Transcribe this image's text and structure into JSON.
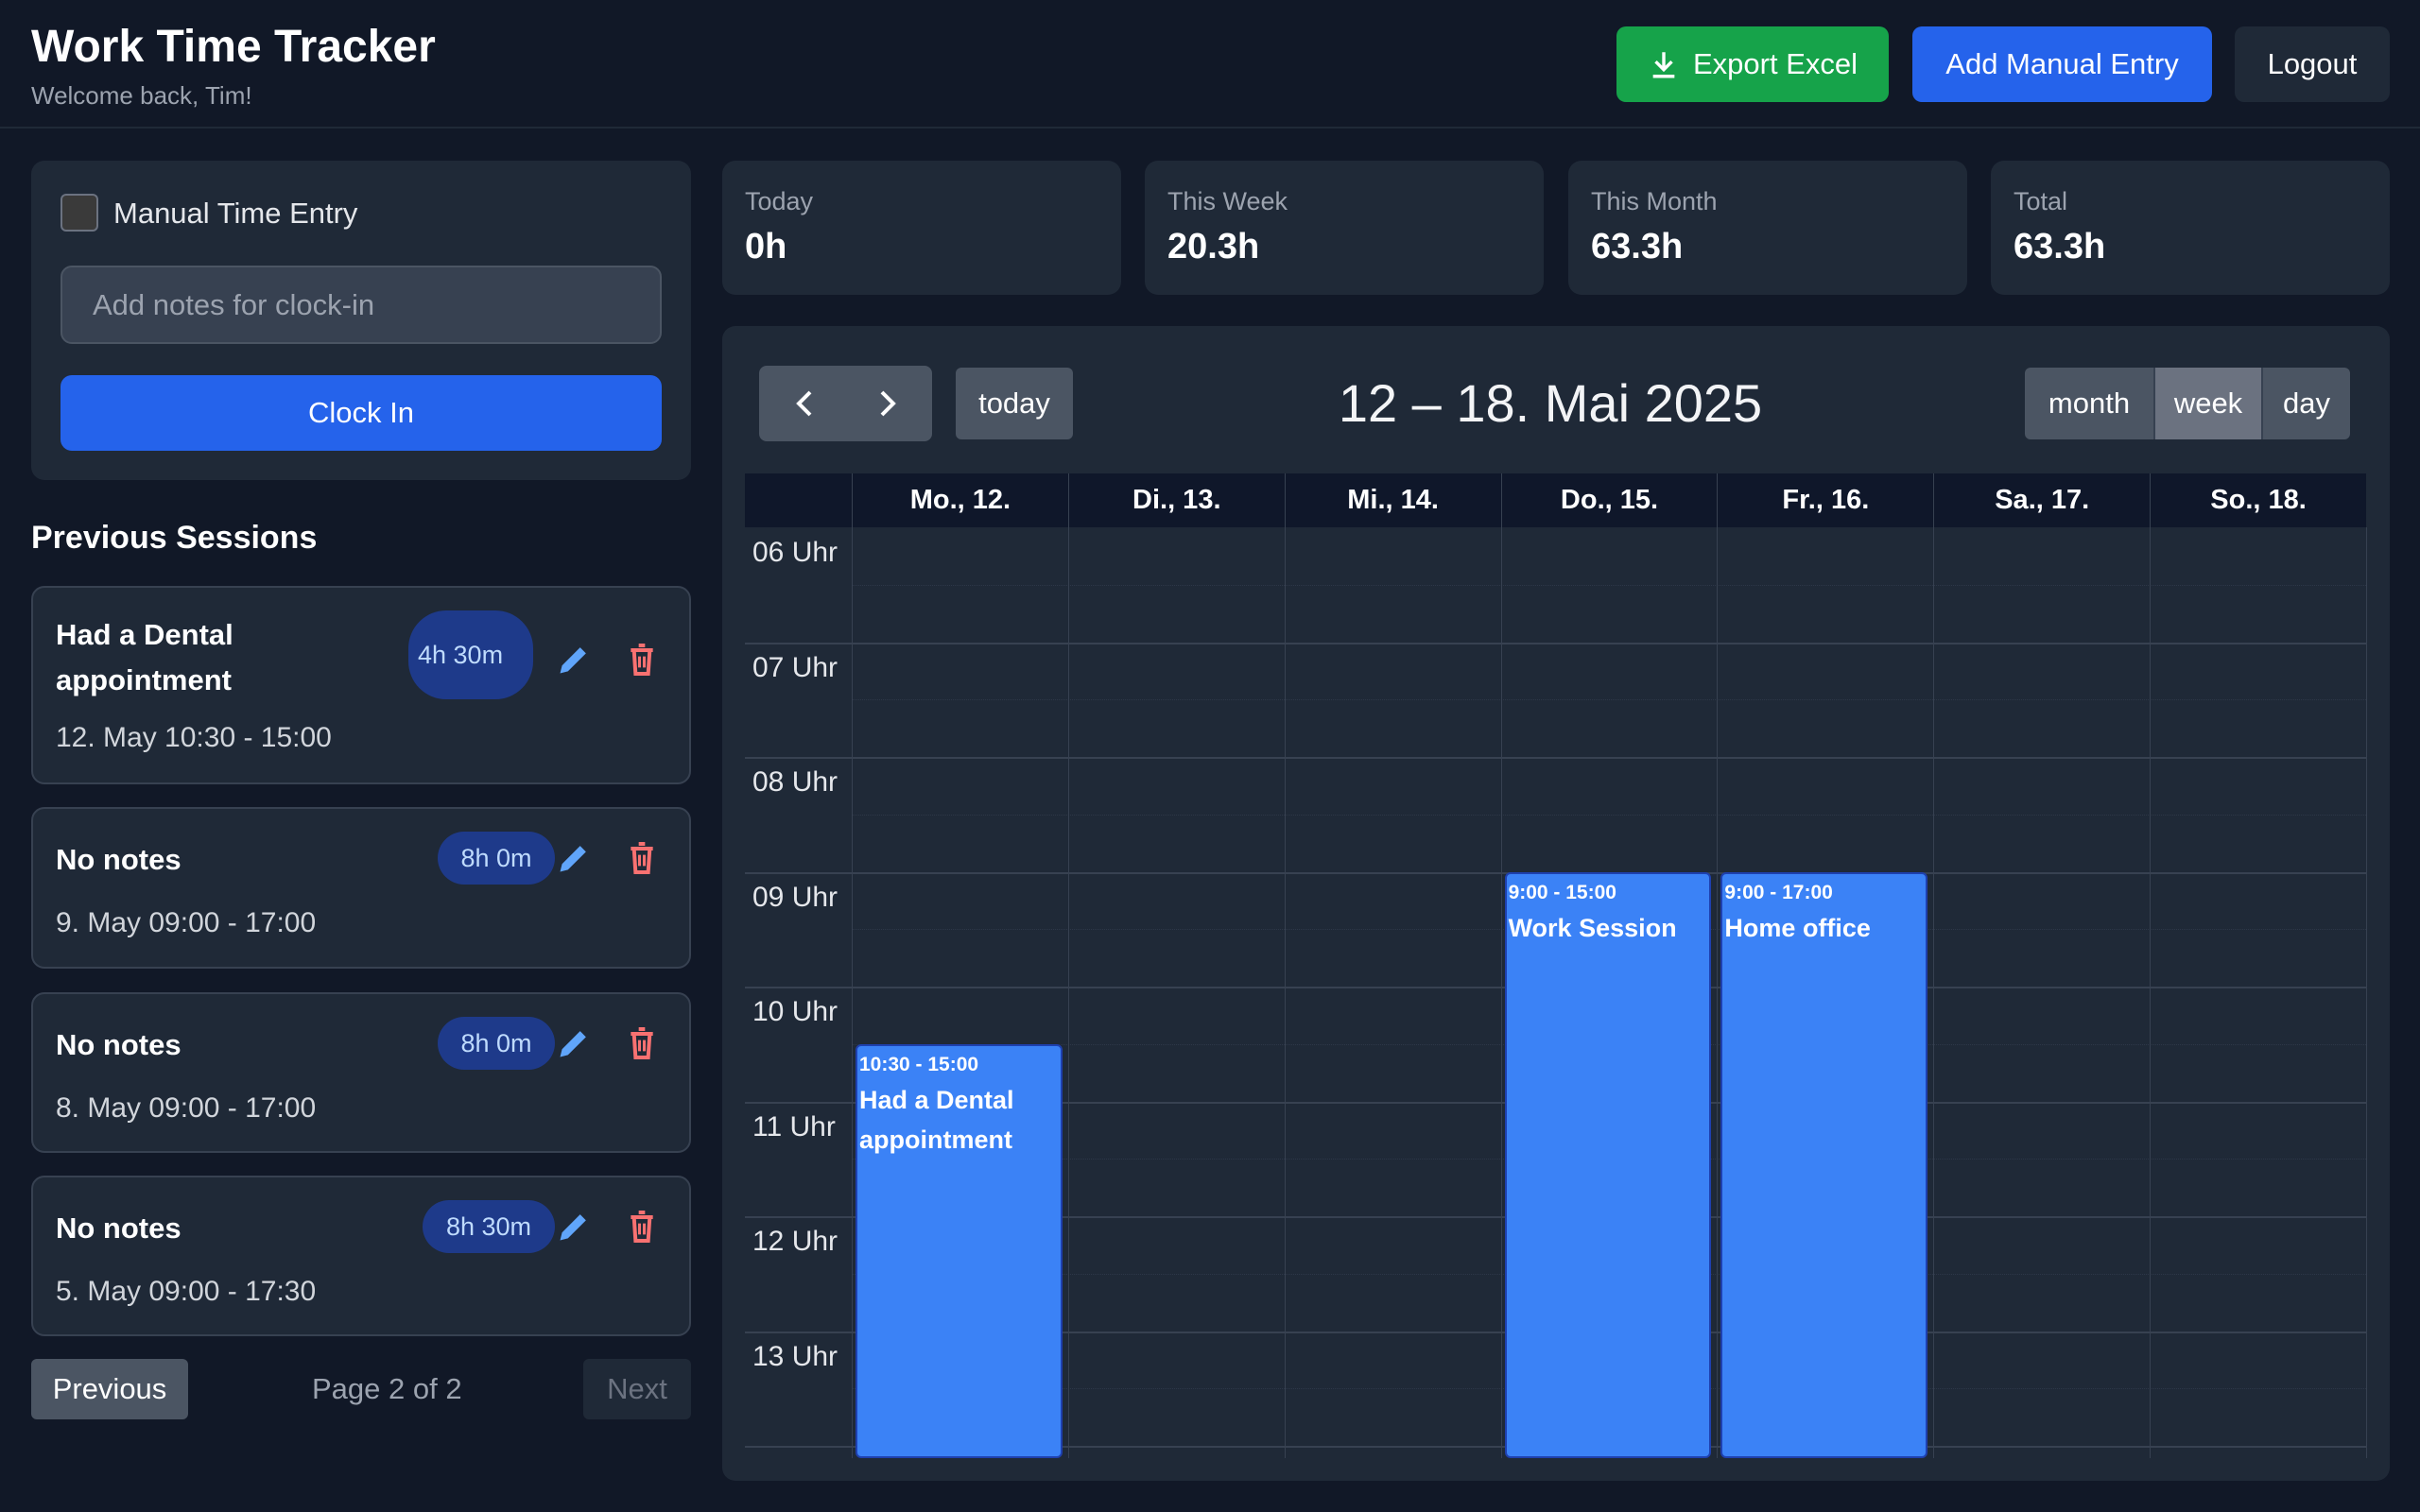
{
  "header": {
    "title": "Work Time Tracker",
    "subtitle": "Welcome back, Tim!",
    "export_label": "Export Excel",
    "add_label": "Add Manual Entry",
    "logout_label": "Logout"
  },
  "clock_panel": {
    "manual_label": "Manual Time Entry",
    "manual_checked": false,
    "notes_placeholder": "Add notes for clock-in",
    "clock_in_label": "Clock In"
  },
  "sessions": {
    "heading": "Previous Sessions",
    "items": [
      {
        "title": "Had a Dental appointment",
        "duration": "4h 30m",
        "time": "12. May 10:30 - 15:00"
      },
      {
        "title": "No notes",
        "duration": "8h 0m",
        "time": "9. May 09:00 - 17:00"
      },
      {
        "title": "No notes",
        "duration": "8h 0m",
        "time": "8. May 09:00 - 17:00"
      },
      {
        "title": "No notes",
        "duration": "8h 30m",
        "time": "5. May 09:00 - 17:30"
      }
    ],
    "previous_label": "Previous",
    "page_info": "Page 2 of 2",
    "next_label": "Next"
  },
  "stats": [
    {
      "label": "Today",
      "value": "0h"
    },
    {
      "label": "This Week",
      "value": "20.3h"
    },
    {
      "label": "This Month",
      "value": "63.3h"
    },
    {
      "label": "Total",
      "value": "63.3h"
    }
  ],
  "calendar": {
    "title": "12 – 18. Mai 2025",
    "today_label": "today",
    "views": [
      "month",
      "week",
      "day"
    ],
    "active_view": "week",
    "days": [
      "Mo., 12.",
      "Di., 13.",
      "Mi., 14.",
      "Do., 15.",
      "Fr., 16.",
      "Sa., 17.",
      "So., 18."
    ],
    "hours": [
      "06 Uhr",
      "07 Uhr",
      "08 Uhr",
      "09 Uhr",
      "10 Uhr",
      "11 Uhr",
      "12 Uhr",
      "13 Uhr"
    ],
    "events": [
      {
        "day": 0,
        "start": "10:30",
        "end": "15:00",
        "time_label": "10:30 - 15:00",
        "title": "Had a Dental appointment"
      },
      {
        "day": 3,
        "start": "9:00",
        "end": "15:00",
        "time_label": "9:00 - 15:00",
        "title": "Work Session"
      },
      {
        "day": 4,
        "start": "9:00",
        "end": "17:00",
        "time_label": "9:00 - 17:00",
        "title": "Home office"
      }
    ]
  },
  "colors": {
    "accent": "#2563eb",
    "export": "#16a34a",
    "event": "#3b82f6",
    "delete": "#f87171",
    "edit": "#60a5fa"
  }
}
